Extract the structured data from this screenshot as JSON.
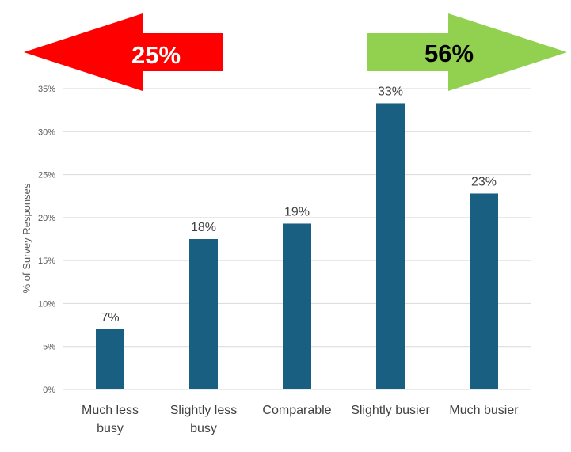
{
  "chart_data": {
    "type": "bar",
    "categories": [
      [
        "Much less",
        "busy"
      ],
      [
        "Slightly less",
        "busy"
      ],
      [
        "Comparable"
      ],
      [
        "Slightly busier"
      ],
      [
        "Much busier"
      ]
    ],
    "values": [
      7,
      17.5,
      19.3,
      33.3,
      22.8
    ],
    "data_labels": [
      "7%",
      "18%",
      "19%",
      "33%",
      "23%"
    ],
    "ylabel": "% of Survey Responses",
    "ylim": [
      0,
      35
    ],
    "yticks": [
      0,
      5,
      10,
      15,
      20,
      25,
      30,
      35
    ],
    "ytick_labels": [
      "0%",
      "5%",
      "10%",
      "15%",
      "20%",
      "25%",
      "30%",
      "35%"
    ],
    "grid": true,
    "colors": {
      "bar": "#185F82",
      "grid": "#D9D9D9"
    },
    "annotations": [
      {
        "text": "25%",
        "direction": "left",
        "color": "#FF0000",
        "text_color": "#FFFFFF"
      },
      {
        "text": "56%",
        "direction": "right",
        "color": "#92D050",
        "text_color": "#000000"
      }
    ]
  }
}
